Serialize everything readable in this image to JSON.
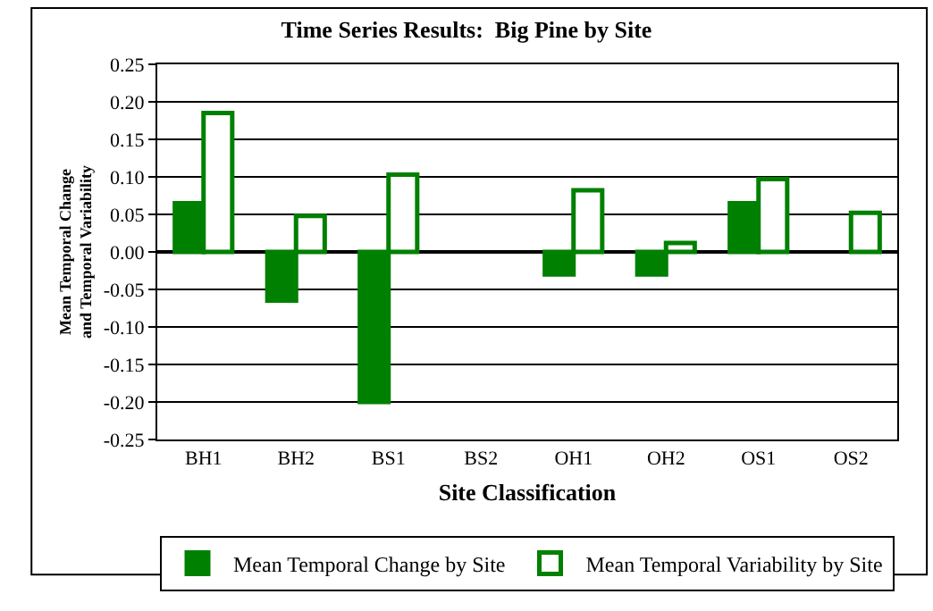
{
  "chart_data": {
    "type": "bar",
    "title": "Time Series Results:  Big Pine by Site",
    "xlabel": "Site Classification",
    "ylabel": "Mean Temporal Change\nand Temporal Variability",
    "categories": [
      "BH1",
      "BH2",
      "BS1",
      "BS2",
      "OH1",
      "OH2",
      "OS1",
      "OS2"
    ],
    "series": [
      {
        "name": "Mean Temporal Change by Site",
        "color": "#008000",
        "values": [
          0.065,
          -0.065,
          -0.2,
          null,
          -0.03,
          -0.03,
          0.065,
          null
        ]
      },
      {
        "name": "Mean Temporal Variability by Site",
        "color": "#008000",
        "values": [
          0.185,
          0.048,
          0.103,
          null,
          0.082,
          0.012,
          0.097,
          0.052
        ]
      }
    ],
    "ylim": [
      -0.25,
      0.25
    ],
    "yticks": [
      {
        "value": -0.25,
        "label": "-0.25"
      },
      {
        "value": -0.2,
        "label": "-0.20"
      },
      {
        "value": -0.15,
        "label": "-0.15"
      },
      {
        "value": -0.1,
        "label": "-0.10"
      },
      {
        "value": -0.05,
        "label": "-0.05"
      },
      {
        "value": 0,
        "label": "0.00"
      },
      {
        "value": 0.05,
        "label": "0.05"
      },
      {
        "value": 0.1,
        "label": "0.10"
      },
      {
        "value": 0.15,
        "label": "0.15"
      },
      {
        "value": 0.2,
        "label": "0.20"
      },
      {
        "value": 0.25,
        "label": "0.25"
      }
    ],
    "grid": "y",
    "legend": "bottom"
  }
}
